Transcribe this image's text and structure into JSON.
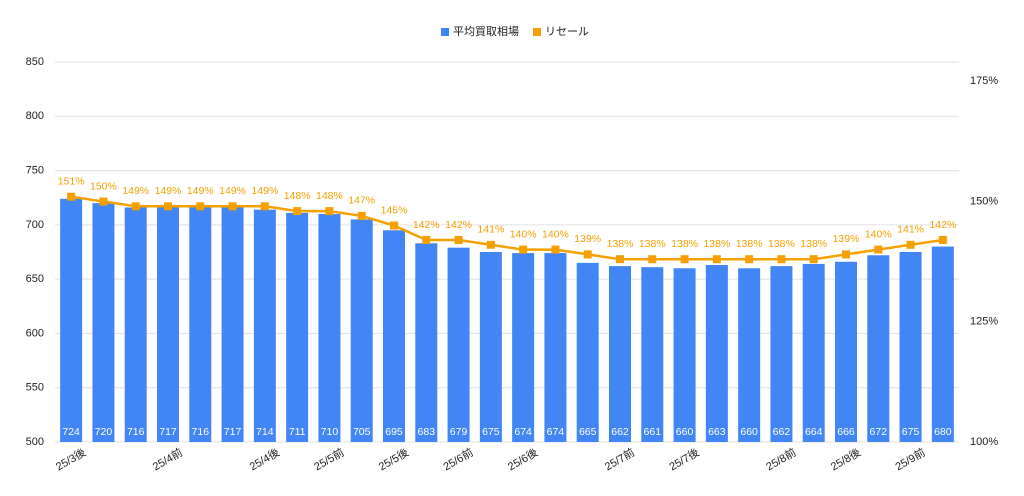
{
  "chart_data": {
    "type": "bar",
    "categories": [
      "25/3後",
      null,
      null,
      "25/4前",
      null,
      null,
      "25/4後",
      null,
      "25/5前",
      null,
      "25/5後",
      null,
      "25/6前",
      null,
      "25/6後",
      null,
      null,
      "25/7前",
      null,
      "25/7後",
      null,
      null,
      "25/8前",
      null,
      "25/8後",
      null,
      "25/9前",
      null
    ],
    "series": [
      {
        "name": "平均買取相場",
        "type": "bar",
        "color": "#4285f4",
        "values": [
          724,
          720,
          716,
          717,
          716,
          717,
          714,
          711,
          710,
          705,
          695,
          683,
          679,
          675,
          674,
          674,
          665,
          662,
          661,
          660,
          663,
          660,
          662,
          664,
          666,
          672,
          675,
          680
        ]
      },
      {
        "name": "リセール",
        "type": "line",
        "axis": "y2",
        "color": "#f5a000",
        "values": [
          151,
          150,
          149,
          149,
          149,
          149,
          149,
          148,
          148,
          147,
          145,
          142,
          142,
          141,
          140,
          140,
          139,
          138,
          138,
          138,
          138,
          138,
          138,
          138,
          139,
          140,
          141,
          142
        ],
        "value_labels": [
          "151%",
          "150%",
          "149%",
          "149%",
          "149%",
          "149%",
          "149%",
          "148%",
          "148%",
          "147%",
          "145%",
          "142%",
          "142%",
          "141%",
          "140%",
          "140%",
          "139%",
          "138%",
          "138%",
          "138%",
          "138%",
          "138%",
          "138%",
          "138%",
          "139%",
          "140%",
          "141%",
          "142%"
        ]
      }
    ],
    "ylim": [
      500,
      850
    ],
    "yticks": [
      500,
      550,
      600,
      650,
      700,
      750,
      800,
      850
    ],
    "y2lim": [
      100,
      179
    ],
    "y2ticks": [
      {
        "value": 100,
        "label": "100%"
      },
      {
        "value": 125,
        "label": "125%"
      },
      {
        "value": 150,
        "label": "150%"
      },
      {
        "value": 175,
        "label": "175%"
      }
    ],
    "grid": true,
    "legend": "top"
  }
}
